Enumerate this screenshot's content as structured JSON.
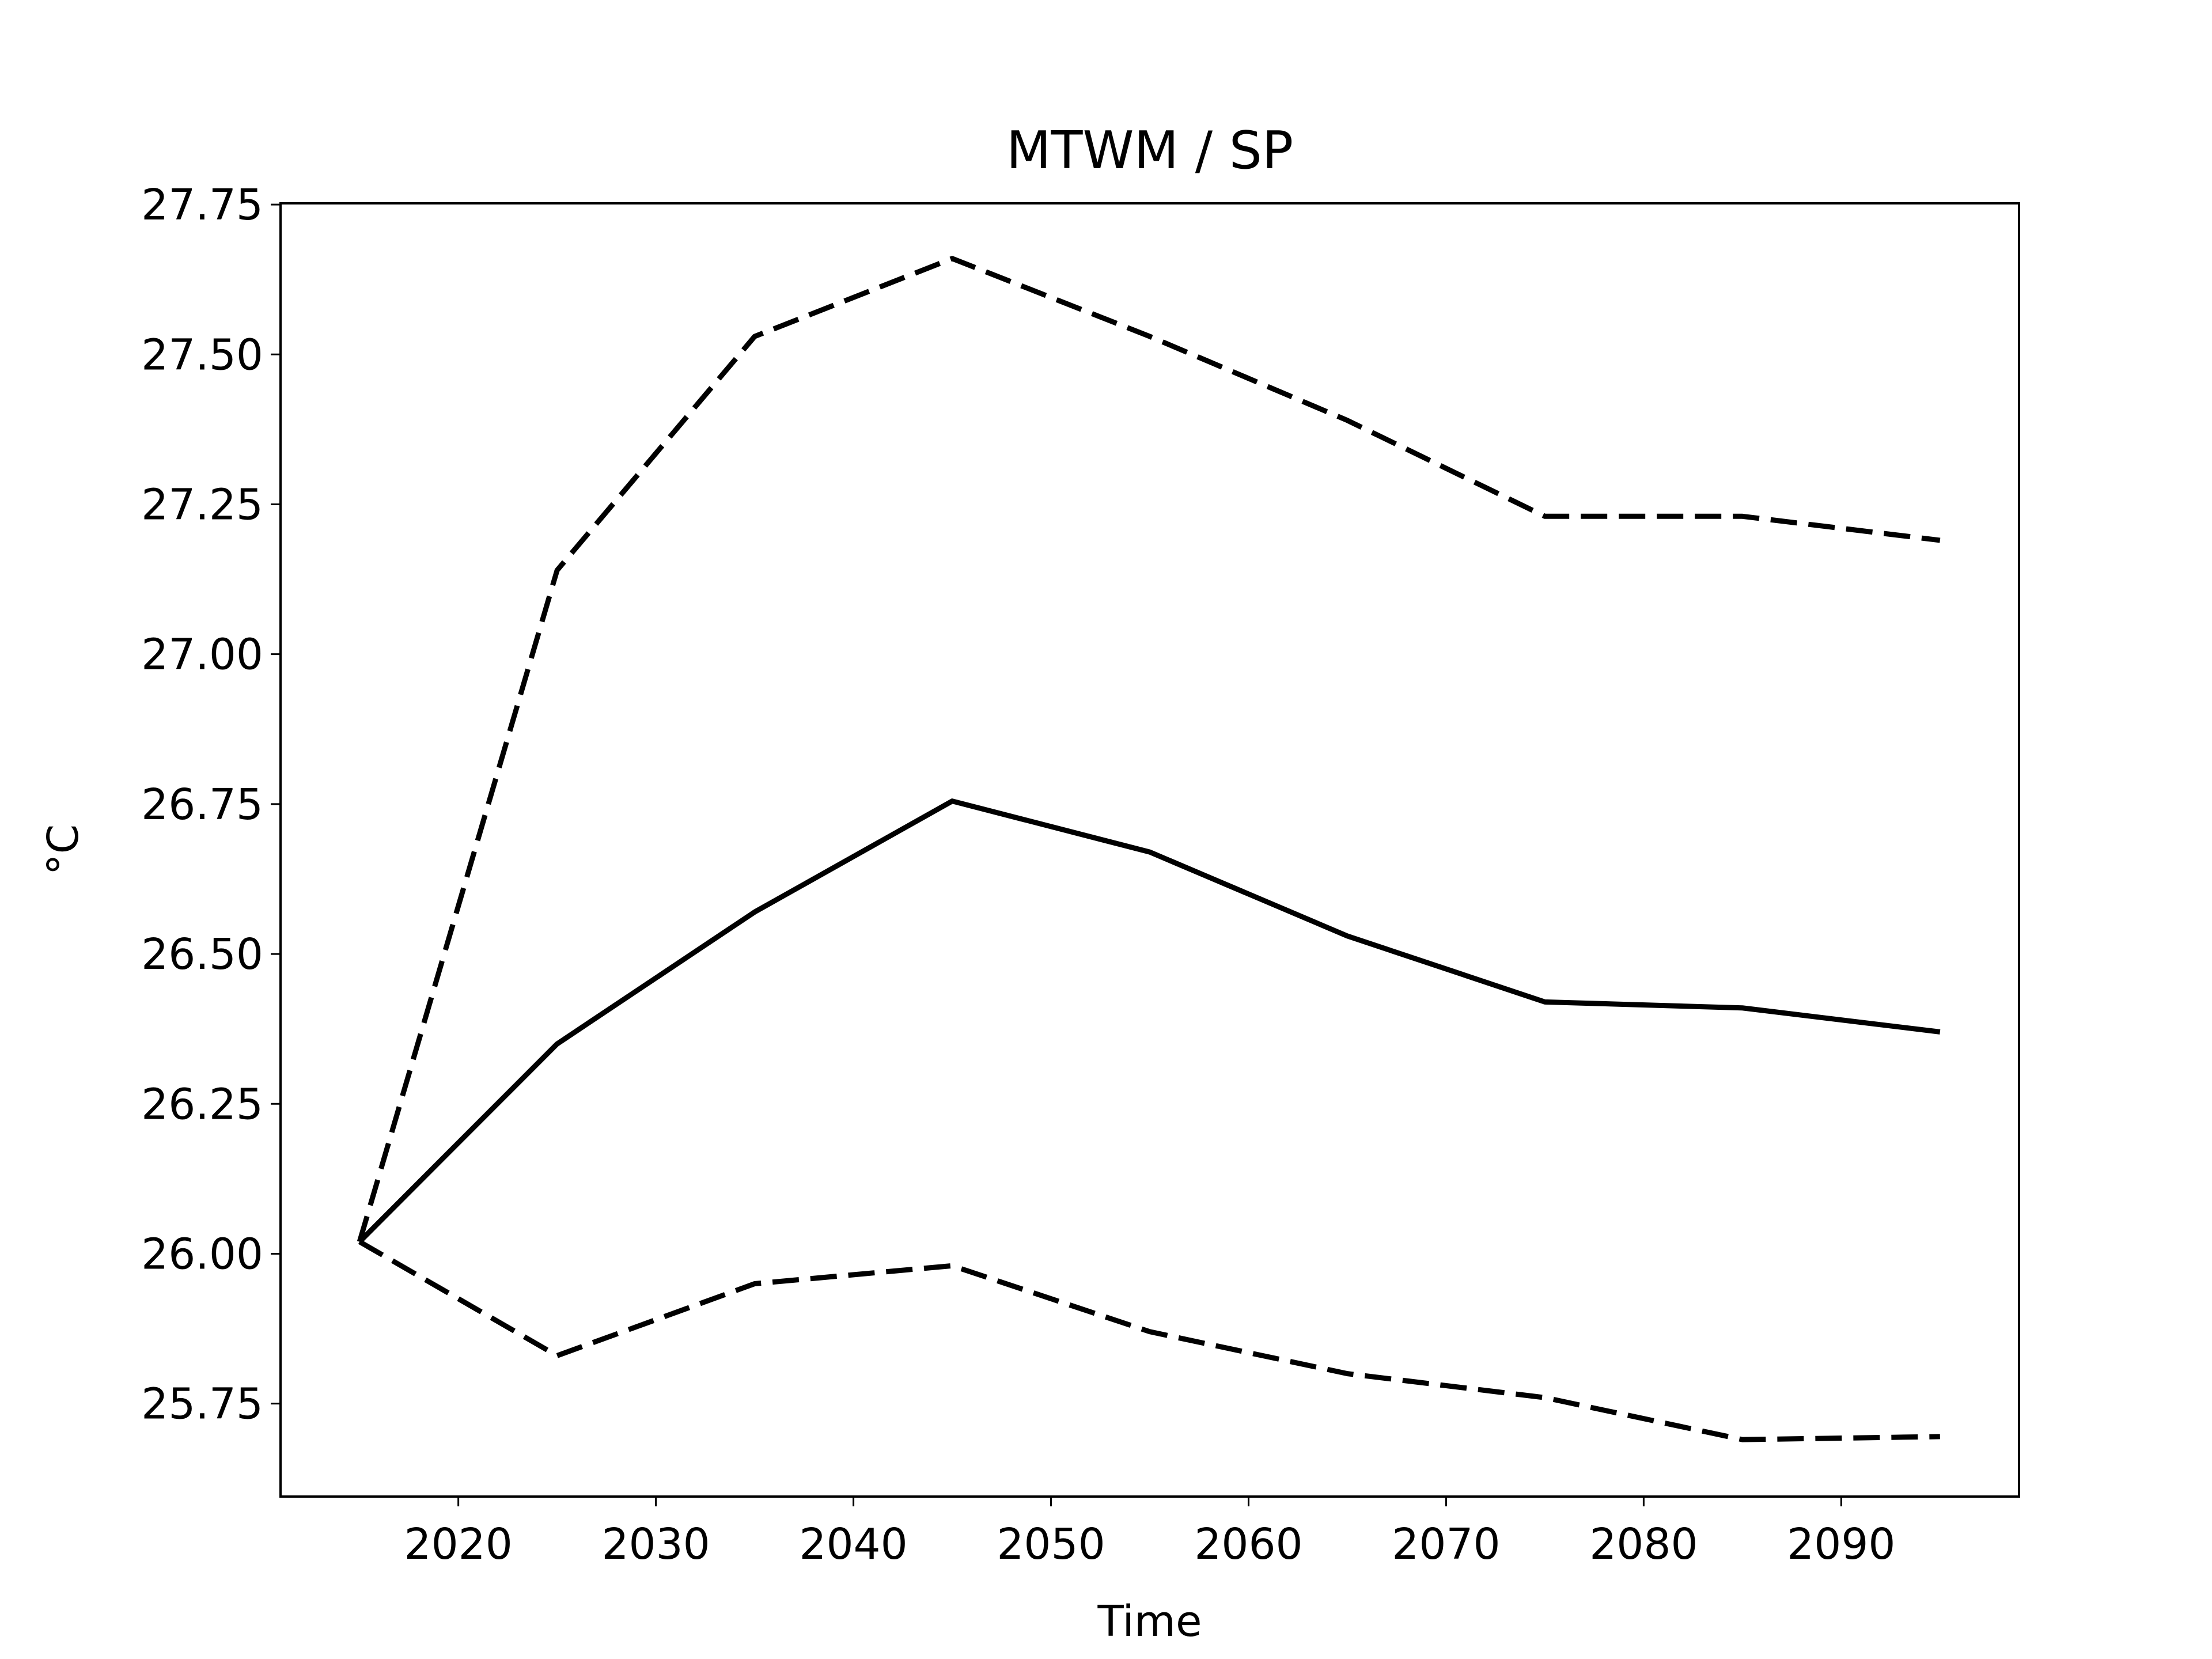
{
  "chart_data": {
    "type": "line",
    "title": "MTWM / SP",
    "x_label": "Time",
    "y_label": "°C",
    "x": [
      2015,
      2025,
      2035,
      2045,
      2055,
      2065,
      2075,
      2085,
      2095
    ],
    "series": [
      {
        "color": "#000000",
        "style": "solid",
        "values": [
          26.02,
          26.35,
          26.57,
          26.755,
          26.67,
          26.53,
          26.42,
          26.41,
          26.37
        ]
      },
      {
        "color": "#000000",
        "style": "dashed",
        "values": [
          26.02,
          27.14,
          27.53,
          27.66,
          27.53,
          27.39,
          27.23,
          27.23,
          27.19
        ]
      },
      {
        "color": "#000000",
        "style": "dashed",
        "values": [
          26.02,
          25.83,
          25.95,
          25.98,
          25.87,
          25.8,
          25.76,
          25.69,
          25.695
        ]
      }
    ],
    "xlim": [
      2011,
      2099
    ],
    "xticks": [
      2020,
      2030,
      2040,
      2050,
      2060,
      2070,
      2080,
      2090
    ],
    "ylim": [
      25.595,
      27.752
    ],
    "yticks": [
      25.75,
      {
        "value": 26,
        "label": "26.00"
      },
      26.25,
      {
        "value": 26.5,
        "label": "26.50"
      },
      26.75,
      {
        "value": 27,
        "label": "27.00"
      },
      27.25,
      {
        "value": 27.5,
        "label": "27.50"
      },
      27.75
    ],
    "grid": false
  }
}
